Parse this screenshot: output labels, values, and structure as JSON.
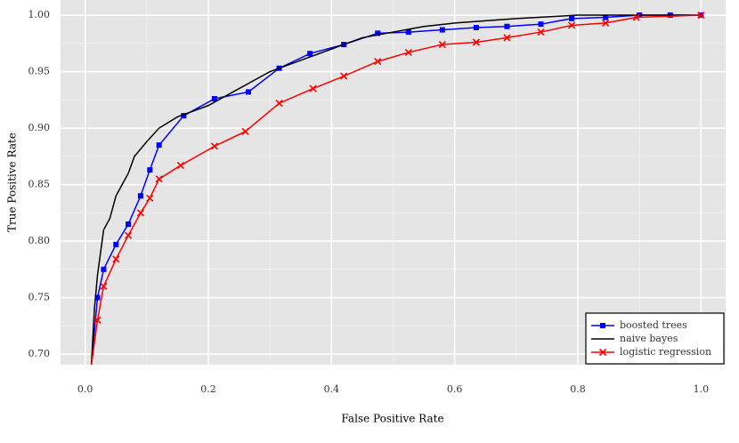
{
  "chart_data": {
    "type": "line",
    "x_label": "False Positive Rate",
    "y_label": "True Positive Rate",
    "xlim": [
      -0.04,
      1.04
    ],
    "ylim": [
      0.6906,
      1.0134
    ],
    "xticks": [
      {
        "value": 0,
        "label": "0.0"
      },
      0.2,
      0.4,
      0.6,
      0.8,
      {
        "value": 1,
        "label": "1.0"
      }
    ],
    "yticks": [
      {
        "value": 0.7,
        "label": "0.70"
      },
      0.75,
      {
        "value": 0.8,
        "label": "0.80"
      },
      0.85,
      {
        "value": 0.9,
        "label": "0.90"
      },
      0.95,
      {
        "value": 1,
        "label": "1.00"
      }
    ],
    "grid": true,
    "minor_grid": true,
    "legend_position": "lower right",
    "series": [
      {
        "name": "boosted trees",
        "color": "#0000ff",
        "marker": "square",
        "x": [
          0.01,
          0.02,
          0.03,
          0.05,
          0.07,
          0.09,
          0.105,
          0.12,
          0.16,
          0.21,
          0.265,
          0.315,
          0.365,
          0.42,
          0.475,
          0.525,
          0.58,
          0.635,
          0.685,
          0.74,
          0.79,
          0.845,
          0.9,
          0.95,
          1.0
        ],
        "values": [
          0.69,
          0.75,
          0.775,
          0.797,
          0.815,
          0.84,
          0.863,
          0.885,
          0.911,
          0.926,
          0.932,
          0.953,
          0.966,
          0.974,
          0.984,
          0.985,
          0.987,
          0.989,
          0.99,
          0.992,
          0.997,
          0.998,
          1.0,
          1.0,
          1.0
        ]
      },
      {
        "name": "naive bayes",
        "color": "#000000",
        "marker": "none",
        "x": [
          0.01,
          0.015,
          0.02,
          0.025,
          0.03,
          0.04,
          0.05,
          0.06,
          0.07,
          0.08,
          0.1,
          0.12,
          0.15,
          0.2,
          0.25,
          0.3,
          0.35,
          0.4,
          0.45,
          0.5,
          0.55,
          0.6,
          0.7,
          0.8,
          1.0
        ],
        "values": [
          0.69,
          0.74,
          0.77,
          0.79,
          0.81,
          0.82,
          0.84,
          0.85,
          0.86,
          0.875,
          0.888,
          0.9,
          0.91,
          0.92,
          0.935,
          0.95,
          0.96,
          0.97,
          0.98,
          0.985,
          0.99,
          0.993,
          0.997,
          1.0,
          1.0
        ]
      },
      {
        "name": "logistic regression",
        "color": "#ff0000",
        "marker": "x",
        "x": [
          0.01,
          0.02,
          0.03,
          0.05,
          0.07,
          0.09,
          0.105,
          0.12,
          0.155,
          0.21,
          0.26,
          0.315,
          0.37,
          0.42,
          0.475,
          0.525,
          0.58,
          0.635,
          0.685,
          0.74,
          0.79,
          0.845,
          0.895,
          1.0
        ],
        "values": [
          0.69,
          0.73,
          0.76,
          0.784,
          0.805,
          0.825,
          0.838,
          0.855,
          0.867,
          0.884,
          0.897,
          0.922,
          0.935,
          0.946,
          0.959,
          0.967,
          0.974,
          0.976,
          0.98,
          0.985,
          0.991,
          0.993,
          0.998,
          1.0
        ]
      }
    ]
  }
}
